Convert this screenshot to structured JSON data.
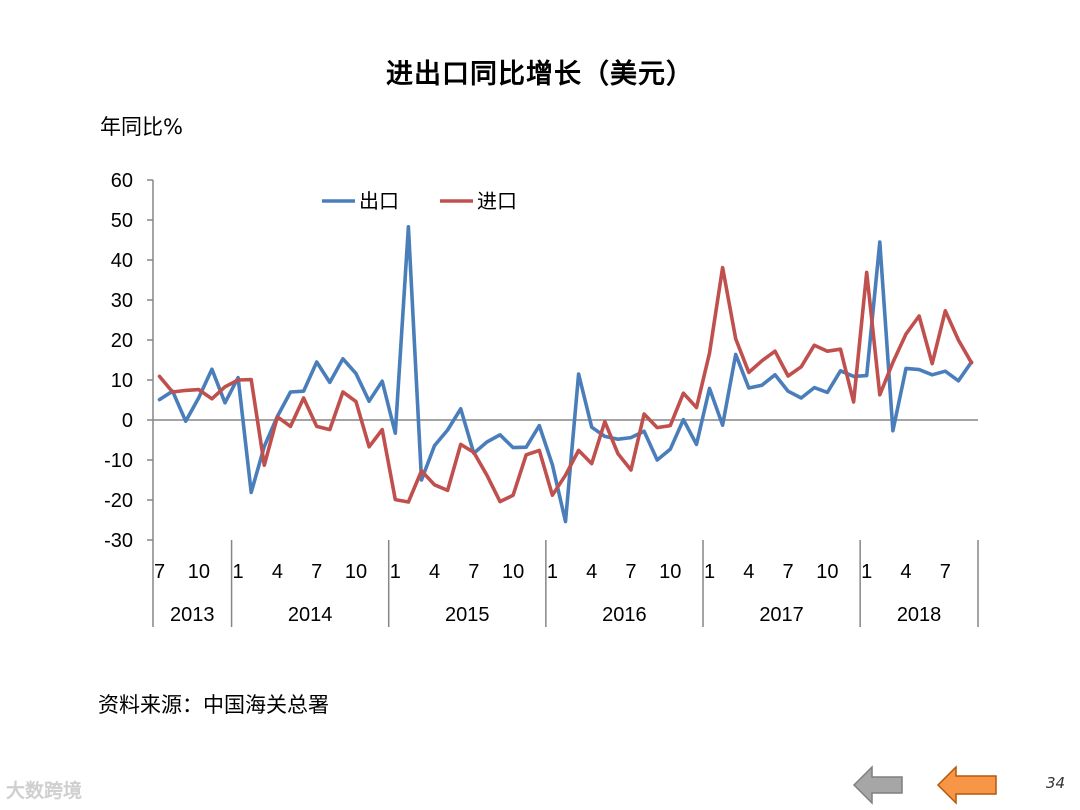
{
  "slide": {
    "title": "进出口同比增长（美元）",
    "unit_label": "年同比%",
    "source": "资料来源：中国海关总署",
    "watermark": "大数跨境",
    "page_number": "34",
    "nav": {
      "back_icon": "arrow-left-gray-icon",
      "forward_icon": "arrow-left-orange-icon"
    }
  },
  "colors": {
    "export": "#4a7ebb",
    "import": "#c0504d",
    "axis": "#868686",
    "back_button": "#a6a6a6",
    "forward_button": "#f79646"
  },
  "chart_data": {
    "type": "line",
    "title": "进出口同比增长（美元）",
    "ylabel": "年同比%",
    "ylim": [
      -30,
      60
    ],
    "yticks": [
      -30,
      -20,
      -10,
      0,
      10,
      20,
      30,
      40,
      50,
      60
    ],
    "grid": false,
    "legend_position": "top-center",
    "x": [
      "2013-07",
      "2013-08",
      "2013-09",
      "2013-10",
      "2013-11",
      "2013-12",
      "2014-01",
      "2014-02",
      "2014-03",
      "2014-04",
      "2014-05",
      "2014-06",
      "2014-07",
      "2014-08",
      "2014-09",
      "2014-10",
      "2014-11",
      "2014-12",
      "2015-01",
      "2015-02",
      "2015-03",
      "2015-04",
      "2015-05",
      "2015-06",
      "2015-07",
      "2015-08",
      "2015-09",
      "2015-10",
      "2015-11",
      "2015-12",
      "2016-01",
      "2016-02",
      "2016-03",
      "2016-04",
      "2016-05",
      "2016-06",
      "2016-07",
      "2016-08",
      "2016-09",
      "2016-10",
      "2016-11",
      "2016-12",
      "2017-01",
      "2017-02",
      "2017-03",
      "2017-04",
      "2017-05",
      "2017-06",
      "2017-07",
      "2017-08",
      "2017-09",
      "2017-10",
      "2017-11",
      "2017-12",
      "2018-01",
      "2018-02",
      "2018-03",
      "2018-04",
      "2018-05",
      "2018-06",
      "2018-07",
      "2018-08",
      "2018-09"
    ],
    "x_tick_labels": [
      {
        "month": "7",
        "index": 0
      },
      {
        "month": "10",
        "index": 3
      },
      {
        "month": "1",
        "index": 6
      },
      {
        "month": "4",
        "index": 9
      },
      {
        "month": "7",
        "index": 12
      },
      {
        "month": "10",
        "index": 15
      },
      {
        "month": "1",
        "index": 18
      },
      {
        "month": "4",
        "index": 21
      },
      {
        "month": "7",
        "index": 24
      },
      {
        "month": "10",
        "index": 27
      },
      {
        "month": "1",
        "index": 30
      },
      {
        "month": "4",
        "index": 33
      },
      {
        "month": "7",
        "index": 36
      },
      {
        "month": "10",
        "index": 39
      },
      {
        "month": "1",
        "index": 42
      },
      {
        "month": "4",
        "index": 45
      },
      {
        "month": "7",
        "index": 48
      },
      {
        "month": "10",
        "index": 51
      },
      {
        "month": "1",
        "index": 54
      },
      {
        "month": "4",
        "index": 57
      },
      {
        "month": "7",
        "index": 60
      }
    ],
    "years": [
      {
        "label": "2013",
        "start": 0,
        "end": 5
      },
      {
        "label": "2014",
        "start": 6,
        "end": 17
      },
      {
        "label": "2015",
        "start": 18,
        "end": 29
      },
      {
        "label": "2016",
        "start": 30,
        "end": 41
      },
      {
        "label": "2017",
        "start": 42,
        "end": 53
      },
      {
        "label": "2018",
        "start": 54,
        "end": 62
      }
    ],
    "series": [
      {
        "name": "出口",
        "color": "#4a7ebb",
        "values": [
          5.1,
          7.2,
          -0.3,
          5.6,
          12.7,
          4.3,
          10.6,
          -18.1,
          -6.6,
          0.9,
          7.0,
          7.2,
          14.5,
          9.4,
          15.3,
          11.6,
          4.7,
          9.7,
          -3.3,
          48.3,
          -15.0,
          -6.4,
          -2.5,
          2.8,
          -8.3,
          -5.5,
          -3.7,
          -6.9,
          -6.8,
          -1.4,
          -11.2,
          -25.4,
          11.5,
          -1.8,
          -4.1,
          -4.8,
          -4.4,
          -2.8,
          -10.0,
          -7.3,
          0.1,
          -6.1,
          7.9,
          -1.3,
          16.4,
          8.0,
          8.7,
          11.3,
          7.2,
          5.5,
          8.1,
          6.9,
          12.3,
          10.9,
          11.1,
          44.5,
          -2.7,
          12.9,
          12.6,
          11.3,
          12.2,
          9.8,
          14.5
        ]
      },
      {
        "name": "进口",
        "color": "#c0504d",
        "values": [
          10.9,
          7.0,
          7.4,
          7.6,
          5.3,
          8.3,
          10.0,
          10.1,
          -11.3,
          0.8,
          -1.6,
          5.5,
          -1.6,
          -2.4,
          7.0,
          4.6,
          -6.7,
          -2.4,
          -19.9,
          -20.5,
          -12.7,
          -16.2,
          -17.6,
          -6.1,
          -8.1,
          -13.8,
          -20.4,
          -18.8,
          -8.7,
          -7.6,
          -18.8,
          -13.8,
          -7.6,
          -10.9,
          -0.4,
          -8.4,
          -12.5,
          1.5,
          -1.9,
          -1.4,
          6.7,
          3.1,
          16.7,
          38.1,
          20.3,
          11.9,
          14.8,
          17.2,
          11.0,
          13.3,
          18.7,
          17.2,
          17.7,
          4.5,
          36.9,
          6.3,
          14.4,
          21.5,
          26.0,
          14.1,
          27.3,
          20.0,
          14.3
        ]
      }
    ]
  }
}
